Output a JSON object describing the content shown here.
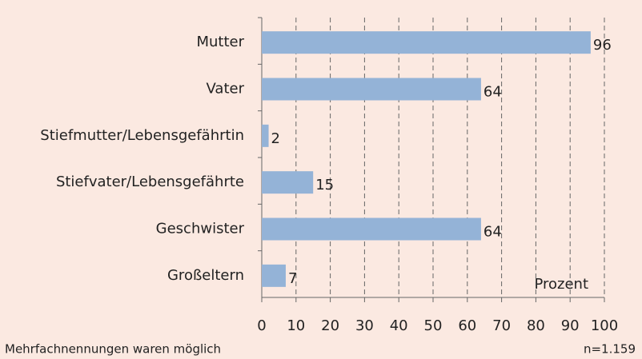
{
  "chart_data": {
    "type": "bar",
    "orientation": "horizontal",
    "categories": [
      "Mutter",
      "Vater",
      "Stiefmutter/Lebensgefährtin",
      "Stiefvater/Lebensgefährte",
      "Geschwister",
      "Großeltern"
    ],
    "values": [
      96,
      64,
      2,
      15,
      64,
      7
    ],
    "color": "#94b3d7",
    "xlim": [
      0,
      100
    ],
    "xticks": [
      0,
      10,
      20,
      30,
      40,
      50,
      60,
      70,
      80,
      90,
      100
    ],
    "grid": true,
    "x_label": "Prozent",
    "footnote": "Mehrfachnennungen waren möglich",
    "sample": "n=1.159"
  }
}
